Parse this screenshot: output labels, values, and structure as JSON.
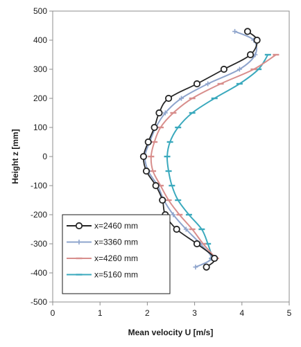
{
  "chart_data": {
    "type": "line",
    "title": "",
    "xlabel": "Mean velocity U [m/s]",
    "ylabel": "Height z [mm]",
    "xlim": [
      0,
      5
    ],
    "ylim": [
      -500,
      500
    ],
    "x_ticks": [
      "0",
      "1",
      "2",
      "3",
      "4",
      "5"
    ],
    "y_ticks": [
      "500",
      "400",
      "300",
      "200",
      "100",
      "0",
      "-100",
      "-200",
      "-300",
      "-400",
      "-500"
    ],
    "grid": false,
    "legend_position": "bottom-left",
    "series": [
      {
        "name": "x=2460 mm",
        "color": "#262626",
        "marker": "circle",
        "points": [
          [
            4.12,
            430
          ],
          [
            4.32,
            400
          ],
          [
            4.18,
            350
          ],
          [
            3.62,
            300
          ],
          [
            3.05,
            250
          ],
          [
            2.45,
            200
          ],
          [
            2.25,
            150
          ],
          [
            2.15,
            100
          ],
          [
            2.02,
            50
          ],
          [
            1.92,
            0
          ],
          [
            1.98,
            -50
          ],
          [
            2.18,
            -100
          ],
          [
            2.32,
            -150
          ],
          [
            2.38,
            -200
          ],
          [
            2.62,
            -250
          ],
          [
            3.05,
            -300
          ],
          [
            3.42,
            -350
          ],
          [
            3.25,
            -380
          ]
        ]
      },
      {
        "name": "x=3360 mm",
        "color": "#8ea4cc",
        "marker": "plus",
        "points": [
          [
            3.85,
            430
          ],
          [
            4.25,
            400
          ],
          [
            4.28,
            350
          ],
          [
            3.95,
            300
          ],
          [
            3.28,
            250
          ],
          [
            2.72,
            200
          ],
          [
            2.38,
            150
          ],
          [
            2.18,
            100
          ],
          [
            2.05,
            50
          ],
          [
            1.95,
            0
          ],
          [
            2.02,
            -50
          ],
          [
            2.22,
            -100
          ],
          [
            2.35,
            -150
          ],
          [
            2.55,
            -200
          ],
          [
            2.82,
            -250
          ],
          [
            3.12,
            -300
          ],
          [
            3.35,
            -350
          ],
          [
            3.02,
            -380
          ]
        ]
      },
      {
        "name": "x=4260 mm",
        "color": "#d88e8c",
        "marker": "dash",
        "points": [
          [
            4.72,
            350
          ],
          [
            4.25,
            300
          ],
          [
            3.55,
            250
          ],
          [
            2.95,
            200
          ],
          [
            2.55,
            150
          ],
          [
            2.28,
            100
          ],
          [
            2.15,
            50
          ],
          [
            2.08,
            0
          ],
          [
            2.12,
            -50
          ],
          [
            2.28,
            -100
          ],
          [
            2.45,
            -150
          ],
          [
            2.68,
            -200
          ],
          [
            2.95,
            -250
          ],
          [
            3.18,
            -300
          ],
          [
            3.45,
            -350
          ]
        ]
      },
      {
        "name": "x=5160 mm",
        "color": "#3aa9bd",
        "marker": "dash",
        "points": [
          [
            4.55,
            350
          ],
          [
            4.35,
            300
          ],
          [
            3.95,
            250
          ],
          [
            3.42,
            200
          ],
          [
            2.95,
            150
          ],
          [
            2.65,
            100
          ],
          [
            2.48,
            50
          ],
          [
            2.42,
            0
          ],
          [
            2.45,
            -50
          ],
          [
            2.52,
            -100
          ],
          [
            2.65,
            -150
          ],
          [
            2.88,
            -200
          ],
          [
            3.15,
            -250
          ],
          [
            3.28,
            -300
          ],
          [
            3.38,
            -350
          ]
        ]
      }
    ]
  }
}
